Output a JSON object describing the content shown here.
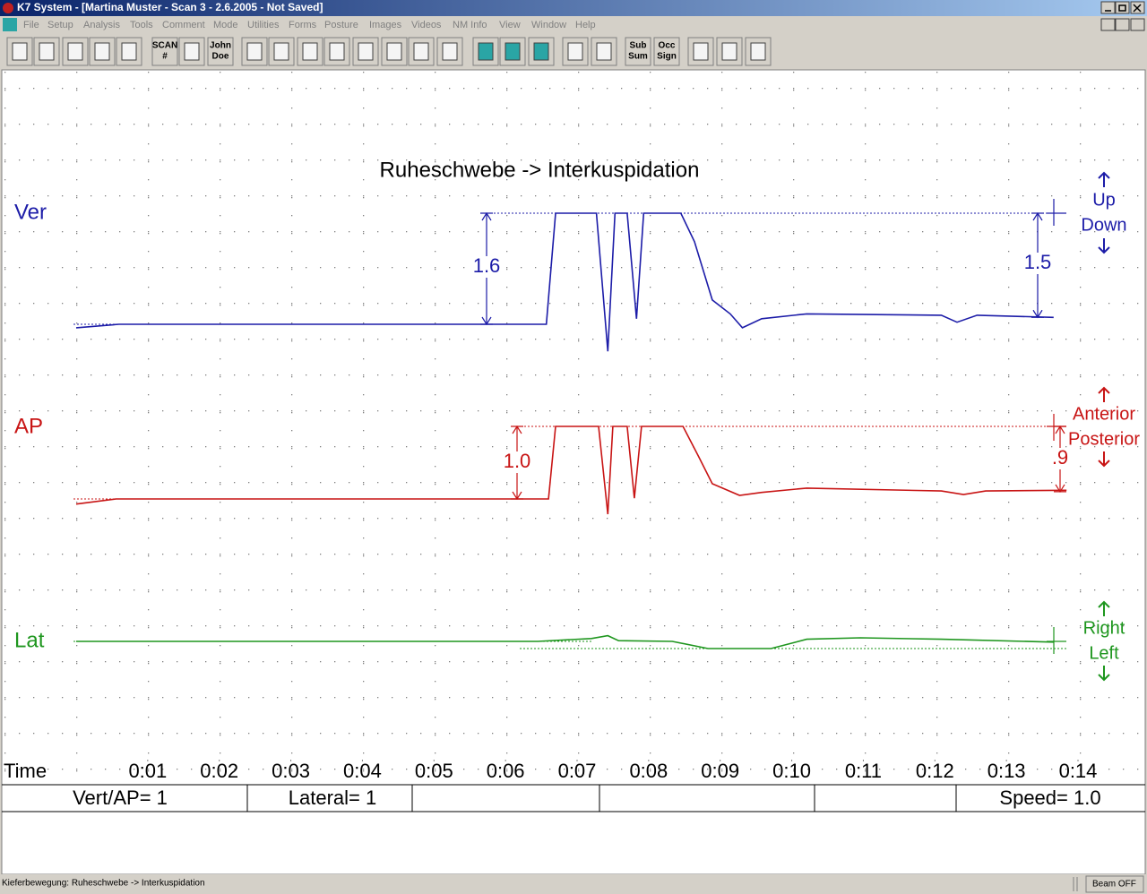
{
  "window_title": "K7 System - [Martina Muster - Scan 3 - 2.6.2005 - Not Saved]",
  "menu": [
    "File",
    "Setup",
    "Analysis",
    "Tools",
    "Comment",
    "Mode",
    "Utilities",
    "Forms",
    "Posture",
    "Images",
    "Videos",
    "NM Info",
    "View",
    "Window",
    "Help"
  ],
  "toolbar_labels": [
    [
      "SCAN",
      "#"
    ],
    [
      "John",
      "Doe"
    ],
    [
      "Sub",
      "Sum"
    ],
    [
      "Occ",
      "Sign"
    ]
  ],
  "chart_data": {
    "type": "line",
    "title": "Ruheschwebe -> Interkuspidation",
    "x_label": "Time",
    "xlim": [
      0,
      14
    ],
    "xticks": [
      {
        "value": 1,
        "label": "0:01"
      },
      {
        "value": 2,
        "label": "0:02"
      },
      {
        "value": 3,
        "label": "0:03"
      },
      {
        "value": 4,
        "label": "0:04"
      },
      {
        "value": 5,
        "label": "0:05"
      },
      {
        "value": 6,
        "label": "0:06"
      },
      {
        "value": 7,
        "label": "0:07"
      },
      {
        "value": 8,
        "label": "0:08"
      },
      {
        "value": 9,
        "label": "0:09"
      },
      {
        "value": 10,
        "label": "0:10"
      },
      {
        "value": 11,
        "label": "0:11"
      },
      {
        "value": 12,
        "label": "0:12"
      },
      {
        "value": 13,
        "label": "0:13"
      },
      {
        "value": 14,
        "label": "0:14"
      }
    ],
    "traces": [
      {
        "name": "Ver",
        "color": "#1c1ca8",
        "x": [
          0,
          0.6,
          6.57,
          6.7,
          7.27,
          7.43,
          7.53,
          7.7,
          7.83,
          7.93,
          8.45,
          8.64,
          8.89,
          9.14,
          9.31,
          9.58,
          10.21,
          12.09,
          12.31,
          12.59,
          13.66
        ],
        "values": [
          -0.05,
          0,
          0,
          1.6,
          1.6,
          -0.39,
          1.6,
          1.6,
          0.08,
          1.6,
          1.6,
          1.19,
          0.35,
          0.15,
          -0.05,
          0.08,
          0.15,
          0.13,
          0.03,
          0.13,
          0.1
        ],
        "measures": [
          1.6,
          1.5
        ],
        "measure_labels": [
          "1.6",
          "1.5"
        ],
        "directions": [
          "Up",
          "Down"
        ]
      },
      {
        "name": "AP",
        "color": "#c81414",
        "x": [
          0,
          0.56,
          6.6,
          6.7,
          7.3,
          7.43,
          7.5,
          7.7,
          7.8,
          7.9,
          8.48,
          8.7,
          8.89,
          9.27,
          9.58,
          10.21,
          12.09,
          12.4,
          12.71,
          13.84
        ],
        "values": [
          -0.07,
          0,
          0,
          1.0,
          1.0,
          -0.21,
          1.0,
          1.0,
          0.01,
          1.0,
          1.0,
          0.58,
          0.21,
          0.05,
          0.09,
          0.15,
          0.11,
          0.06,
          0.11,
          0.12
        ],
        "measures": [
          1.0,
          0.9
        ],
        "measure_labels": [
          "1.0",
          ".9"
        ],
        "directions": [
          "Anterior",
          "Posterior"
        ]
      },
      {
        "name": "Lat",
        "color": "#1e961e",
        "x": [
          0,
          6.45,
          7.2,
          7.43,
          7.58,
          8.33,
          8.83,
          9.71,
          10.21,
          10.96,
          12.09,
          13.66
        ],
        "values": [
          0,
          0,
          0.04,
          0.08,
          0.01,
          0,
          -0.1,
          -0.1,
          0.03,
          0.05,
          0.03,
          -0.01
        ],
        "directions": [
          "Right",
          "Left"
        ]
      }
    ]
  },
  "settings": [
    "Vert/AP= 1",
    "Lateral= 1",
    "Speed= 1.0"
  ],
  "status": {
    "text": "Kieferbewegung: Ruheschwebe -> Interkuspidation",
    "beam": "Beam OFF"
  }
}
